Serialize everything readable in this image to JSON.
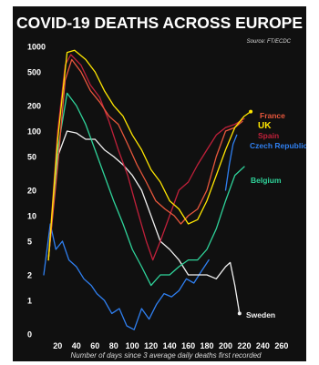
{
  "chart_data": {
    "type": "line",
    "title": "COVID-19 DEATHS ACROSS EUROPE",
    "source": "Source: FT/ECDC",
    "xlabel": "Number of days since 3 average daily deaths first recorded",
    "ylabel": "",
    "yscale": "log",
    "xlim": [
      5,
      265
    ],
    "ylim": [
      0.4,
      1000
    ],
    "grid": false,
    "legend": "none",
    "x_ticks": [
      "20",
      "40",
      "60",
      "80",
      "100",
      "120",
      "140",
      "160",
      "180",
      "200",
      "220",
      "240",
      "260"
    ],
    "y_ticks": [
      {
        "label": "1000",
        "value": 1000
      },
      {
        "label": "500",
        "value": 500
      },
      {
        "label": "200",
        "value": 200
      },
      {
        "label": "100",
        "value": 100
      },
      {
        "label": "50",
        "value": 50
      },
      {
        "label": "20",
        "value": 20
      },
      {
        "label": "10",
        "value": 10
      },
      {
        "label": "5",
        "value": 5
      },
      {
        "label": "2",
        "value": 2
      },
      {
        "label": "1",
        "value": 1
      },
      {
        "label": "0",
        "value": 0.4
      }
    ],
    "series": [
      {
        "name": "France",
        "color": "#e8573c",
        "points": [
          [
            10,
            3
          ],
          [
            20,
            40
          ],
          [
            28,
            400
          ],
          [
            35,
            700
          ],
          [
            45,
            500
          ],
          [
            55,
            300
          ],
          [
            65,
            220
          ],
          [
            75,
            150
          ],
          [
            85,
            120
          ],
          [
            95,
            70
          ],
          [
            105,
            40
          ],
          [
            115,
            25
          ],
          [
            125,
            15
          ],
          [
            135,
            12
          ],
          [
            145,
            10
          ],
          [
            152,
            8
          ],
          [
            160,
            10
          ],
          [
            170,
            12
          ],
          [
            180,
            20
          ],
          [
            190,
            50
          ],
          [
            200,
            100
          ],
          [
            210,
            110
          ],
          [
            218,
            130
          ]
        ]
      },
      {
        "name": "UK",
        "color": "#ffe600",
        "points": [
          [
            10,
            3
          ],
          [
            20,
            80
          ],
          [
            30,
            850
          ],
          [
            38,
            900
          ],
          [
            50,
            700
          ],
          [
            60,
            500
          ],
          [
            70,
            300
          ],
          [
            80,
            200
          ],
          [
            90,
            150
          ],
          [
            100,
            90
          ],
          [
            110,
            60
          ],
          [
            120,
            35
          ],
          [
            130,
            25
          ],
          [
            140,
            15
          ],
          [
            150,
            12
          ],
          [
            160,
            8
          ],
          [
            170,
            9
          ],
          [
            180,
            15
          ],
          [
            190,
            30
          ],
          [
            200,
            60
          ],
          [
            210,
            110
          ],
          [
            220,
            150
          ],
          [
            227,
            170
          ]
        ]
      },
      {
        "name": "Spain",
        "color": "#c0203a",
        "points": [
          [
            10,
            3
          ],
          [
            20,
            100
          ],
          [
            28,
            600
          ],
          [
            34,
            800
          ],
          [
            45,
            600
          ],
          [
            55,
            350
          ],
          [
            65,
            250
          ],
          [
            75,
            130
          ],
          [
            85,
            60
          ],
          [
            95,
            30
          ],
          [
            105,
            12
          ],
          [
            115,
            5
          ],
          [
            122,
            3
          ],
          [
            130,
            5
          ],
          [
            140,
            10
          ],
          [
            150,
            20
          ],
          [
            160,
            25
          ],
          [
            170,
            40
          ],
          [
            180,
            60
          ],
          [
            190,
            90
          ],
          [
            200,
            110
          ],
          [
            210,
            120
          ],
          [
            220,
            140
          ]
        ]
      },
      {
        "name": "Czech Republic",
        "color": "#2f7ff0",
        "points": [
          [
            200,
            20
          ],
          [
            204,
            40
          ],
          [
            208,
            70
          ],
          [
            212,
            90
          ]
        ]
      },
      {
        "name": "Belgium",
        "color": "#2fd39a",
        "points": [
          [
            10,
            3
          ],
          [
            20,
            60
          ],
          [
            30,
            280
          ],
          [
            40,
            200
          ],
          [
            50,
            120
          ],
          [
            60,
            60
          ],
          [
            70,
            30
          ],
          [
            80,
            15
          ],
          [
            90,
            8
          ],
          [
            100,
            4
          ],
          [
            110,
            2.5
          ],
          [
            120,
            1.5
          ],
          [
            130,
            2
          ],
          [
            140,
            2
          ],
          [
            150,
            2.5
          ],
          [
            160,
            3
          ],
          [
            170,
            3
          ],
          [
            180,
            4
          ],
          [
            190,
            7
          ],
          [
            200,
            15
          ],
          [
            210,
            30
          ],
          [
            220,
            38
          ]
        ]
      },
      {
        "name": "Sweden",
        "color": "#f0f0f0",
        "points": [
          [
            10,
            3
          ],
          [
            20,
            50
          ],
          [
            30,
            100
          ],
          [
            40,
            95
          ],
          [
            50,
            80
          ],
          [
            60,
            80
          ],
          [
            70,
            60
          ],
          [
            80,
            50
          ],
          [
            90,
            40
          ],
          [
            100,
            30
          ],
          [
            110,
            20
          ],
          [
            120,
            10
          ],
          [
            130,
            5
          ],
          [
            140,
            4
          ],
          [
            150,
            3
          ],
          [
            160,
            2
          ],
          [
            170,
            2
          ],
          [
            180,
            2
          ],
          [
            190,
            1.8
          ],
          [
            200,
            2.5
          ],
          [
            205,
            2.8
          ],
          [
            210,
            1.5
          ],
          [
            215,
            0.7
          ]
        ]
      },
      {
        "name": "",
        "color": "#2f7ff0",
        "points": [
          [
            5,
            2
          ],
          [
            12,
            8
          ],
          [
            18,
            4
          ],
          [
            25,
            5
          ],
          [
            32,
            3
          ],
          [
            40,
            2.5
          ],
          [
            48,
            1.8
          ],
          [
            56,
            1.5
          ],
          [
            62,
            1.2
          ],
          [
            70,
            1
          ],
          [
            78,
            0.7
          ],
          [
            86,
            0.8
          ],
          [
            94,
            0.5
          ],
          [
            102,
            0.45
          ],
          [
            110,
            0.8
          ],
          [
            118,
            0.6
          ],
          [
            126,
            0.9
          ],
          [
            134,
            1.2
          ],
          [
            142,
            1.1
          ],
          [
            150,
            1.3
          ],
          [
            158,
            1.8
          ],
          [
            166,
            1.6
          ],
          [
            174,
            2.2
          ],
          [
            182,
            3
          ]
        ]
      }
    ]
  }
}
